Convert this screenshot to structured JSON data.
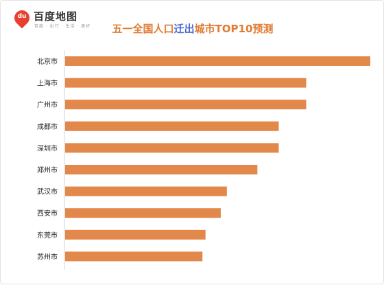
{
  "logo": {
    "name": "百度地图",
    "pin_text": "du",
    "tagline": "百度 · 出行 · 生活 · 更好",
    "brand_color": "#e8402f"
  },
  "chart_data": {
    "type": "bar",
    "orientation": "horizontal",
    "title": "五一全国人口迁出城市TOP10预测",
    "title_parts": [
      {
        "text": "五一全国人口",
        "color": "#e07c34"
      },
      {
        "text": "迁出",
        "color": "#4f6bd1"
      },
      {
        "text": "城市TOP10预测",
        "color": "#e07c34"
      }
    ],
    "categories": [
      "北京市",
      "上海市",
      "广州市",
      "成都市",
      "深圳市",
      "郑州市",
      "武汉市",
      "西安市",
      "东莞市",
      "苏州市"
    ],
    "values": [
      100,
      79,
      79,
      70,
      70,
      63,
      53,
      51,
      46,
      45
    ],
    "value_note": "relative index (no axis scale shown)",
    "bar_color": "#e2884b",
    "grid": false,
    "legend": "none"
  }
}
